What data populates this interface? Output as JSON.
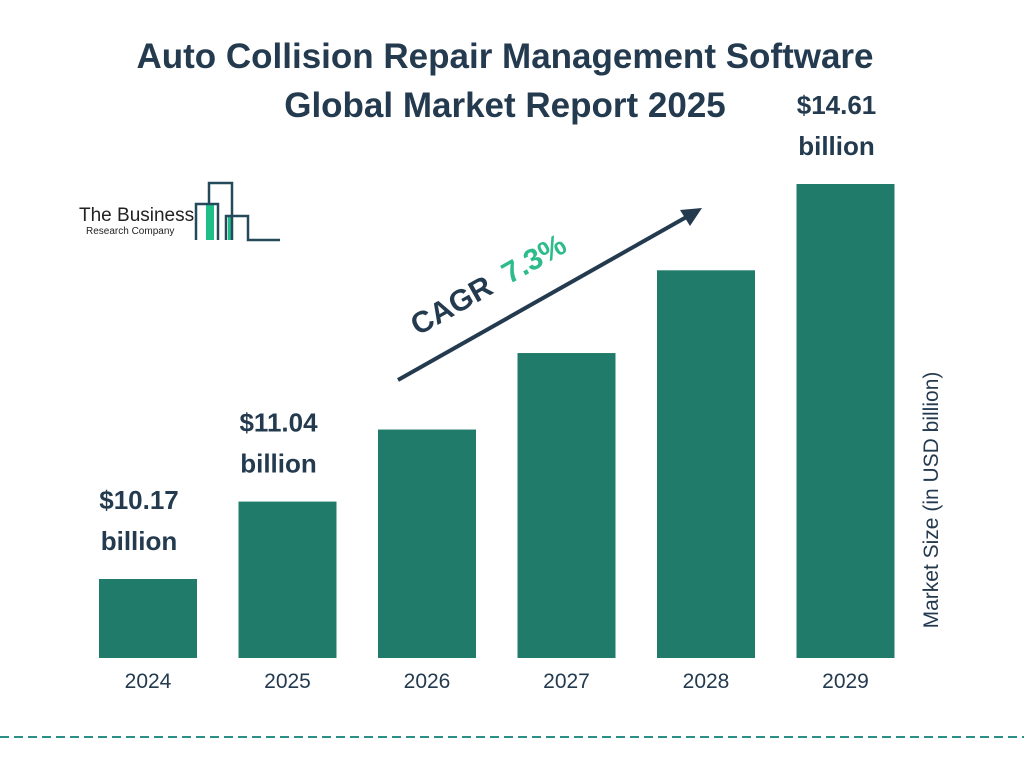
{
  "title_line1": "Auto Collision Repair Management Software",
  "title_line2": "Global Market Report 2025",
  "logo": {
    "line1": "The Business",
    "line2": "Research Company"
  },
  "cagr": {
    "label": "CAGR",
    "value": "7.3%"
  },
  "colors": {
    "bar": "#217b6b",
    "text": "#233a4f",
    "accent": "#2dbb8c",
    "dash": "#2a8f86"
  },
  "chart_data": {
    "type": "bar",
    "categories": [
      "2024",
      "2025",
      "2026",
      "2027",
      "2028",
      "2029"
    ],
    "values": [
      10.17,
      11.04,
      11.85,
      12.71,
      13.64,
      14.61
    ],
    "data_labels": [
      {
        "index": 0,
        "line1": "$10.17",
        "line2": "billion"
      },
      {
        "index": 1,
        "line1": "$11.04",
        "line2": "billion"
      },
      {
        "index": 5,
        "line1": "$14.61",
        "line2": "billion"
      }
    ],
    "ylabel": "Market Size (in USD billion)",
    "xlabel": "",
    "grid": false,
    "legend": "none"
  }
}
